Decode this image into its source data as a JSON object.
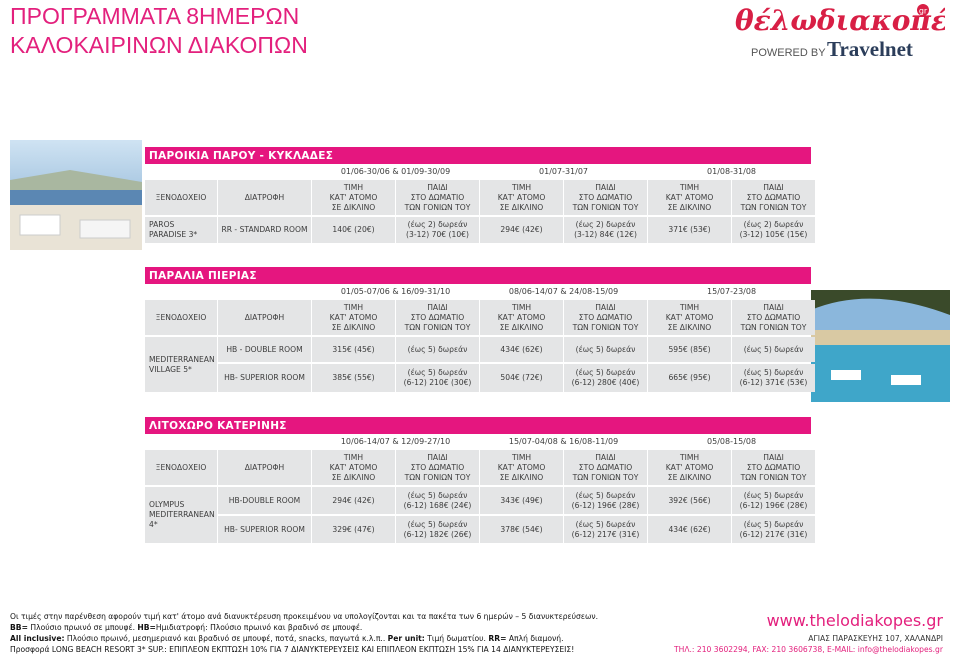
{
  "header": {
    "title": [
      "ΠΡΟΓΡΑΜΜΑΤΑ 8ΗΜΕΡΩΝ",
      "ΚΑΛΟΚΑΙΡΙΝΩΝ ΔΙΑΚΟΠΩΝ"
    ]
  },
  "logo": {
    "brand": "θέλωδιακοπές",
    "tld": "gr",
    "powered": "POWERED BY",
    "partner": "Travelnet"
  },
  "table_headers": {
    "hotel": "ΞΕΝΟΔΟΧΕΙΟ",
    "board": "ΔΙΑΤΡΟΦΗ",
    "adult": [
      "ΤΙΜΗ",
      "ΚΑΤ' ΑΤΟΜΟ",
      "ΣΕ ΔΙΚΛΙΝΟ"
    ],
    "child": [
      "ΠΑΙΔΙ",
      "ΣΤΟ ΔΩΜΑΤΙΟ",
      "ΤΩΝ ΓΟΝΙΩΝ ΤΟΥ"
    ]
  },
  "sections": [
    {
      "title": "ΠΑΡΟΙΚΙΑ ΠΑΡΟΥ - ΚΥΚΛΑΔΕΣ",
      "periods": [
        "01/06-30/06 & 01/09-30/09",
        "01/07-31/07",
        "01/08-31/08"
      ],
      "hotel": [
        "PAROS",
        "PARADISE 3*"
      ],
      "rows": [
        {
          "board": "RR - STANDARD ROOM",
          "cells": [
            [
              "140€ (20€)"
            ],
            [
              "(έως 2) δωρεάν",
              "(3-12) 70€ (10€)"
            ],
            [
              "294€ (42€)"
            ],
            [
              "(έως 2) δωρεάν",
              "(3-12) 84€ (12€)"
            ],
            [
              "371€ (53€)"
            ],
            [
              "(έως 2) δωρεάν",
              "(3-12) 105€ (15€)"
            ]
          ]
        }
      ]
    },
    {
      "title": "ΠΑΡΑΛΙΑ ΠΙΕΡΙΑΣ",
      "periods": [
        "01/05-07/06 & 16/09-31/10",
        "08/06-14/07 & 24/08-15/09",
        "15/07-23/08"
      ],
      "hotel": [
        "MEDITERRANEAN",
        "VILLAGE 5*"
      ],
      "rows": [
        {
          "board": "HB - DOUBLE ROOM",
          "cells": [
            [
              "315€ (45€)"
            ],
            [
              "(έως 5) δωρεάν"
            ],
            [
              "434€ (62€)"
            ],
            [
              "(έως 5) δωρεάν"
            ],
            [
              "595€ (85€)"
            ],
            [
              "(έως 5) δωρεάν"
            ]
          ]
        },
        {
          "board": "HB- SUPERIOR ROOM",
          "cells": [
            [
              "385€ (55€)"
            ],
            [
              "(έως 5) δωρεάν",
              "(6-12) 210€ (30€)"
            ],
            [
              "504€ (72€)"
            ],
            [
              "(έως 5) δωρεάν",
              "(6-12) 280€ (40€)"
            ],
            [
              "665€ (95€)"
            ],
            [
              "(έως 5) δωρεάν",
              "(6-12) 371€ (53€)"
            ]
          ]
        }
      ]
    },
    {
      "title": "ΛΙΤΟΧΩΡΟ ΚΑΤΕΡΙΝΗΣ",
      "periods": [
        "10/06-14/07 & 12/09-27/10",
        "15/07-04/08 & 16/08-11/09",
        "05/08-15/08"
      ],
      "hotel": [
        "OLYMPUS",
        "MEDITERRANEAN",
        "4*"
      ],
      "rows": [
        {
          "board": "HB-DOUBLE ROOM",
          "cells": [
            [
              "294€ (42€)"
            ],
            [
              "(έως 5) δωρεάν",
              "(6-12) 168€ (24€)"
            ],
            [
              "343€ (49€)"
            ],
            [
              "(έως 5) δωρεάν",
              "(6-12) 196€ (28€)"
            ],
            [
              "392€ (56€)"
            ],
            [
              "(έως 5) δωρεάν",
              "(6-12) 196€ (28€)"
            ]
          ]
        },
        {
          "board": "HB- SUPERIOR ROOM",
          "cells": [
            [
              "329€ (47€)"
            ],
            [
              "(έως 5) δωρεάν",
              "(6-12) 182€ (26€)"
            ],
            [
              "378€ (54€)"
            ],
            [
              "(έως 5) δωρεάν",
              "(6-12) 217€ (31€)"
            ],
            [
              "434€ (62€)"
            ],
            [
              "(έως 5) δωρεάν",
              "(6-12) 217€ (31€)"
            ]
          ]
        }
      ]
    }
  ],
  "notes": [
    [
      {
        "text": "Οι τιμές στην παρένθεση αφορούν τιμή κατ' άτομο ανά διανυκτέρευση προκειμένου να υπολογίζονται και τα πακέτα των 6 ημερών – 5 διανυκτερεύσεων.",
        "bold": false
      }
    ],
    [
      {
        "text": "BB=",
        "bold": true
      },
      {
        "text": " Πλούσιο πρωινό σε μπουφέ. ",
        "bold": false
      },
      {
        "text": "HB=",
        "bold": true
      },
      {
        "text": "Ημιδιατροφή: Πλούσιο πρωινό και βραδινό σε μπουφέ.",
        "bold": false
      }
    ],
    [
      {
        "text": "All inclusive:",
        "bold": true
      },
      {
        "text": " Πλούσιο πρωινό, μεσημεριανό και βραδινό σε μπουφέ, ποτά, snacks, παγωτά κ.λ.π.. ",
        "bold": false
      },
      {
        "text": "Per unit:",
        "bold": true
      },
      {
        "text": " Τιμή δωματίου. ",
        "bold": false
      },
      {
        "text": "RR=",
        "bold": true
      },
      {
        "text": " Απλή διαμονή.",
        "bold": false
      }
    ],
    [
      {
        "text": "Προσφορά LONG BEACH RESORT 3* SUP.: ΕΠΙΠΛΕΟΝ ΕΚΠΤΩΣΗ 10% ΓΙΑ 7 ΔΙΑΝΥΚΤΕΡΕΥΣΕΙΣ ΚΑΙ ΕΠΙΠΛΕΟΝ ΕΚΠΤΩΣΗ 15% ΓΙΑ 14 ΔΙΑΝΥΚΤΕΡΕΥΣΕΙΣ!",
        "bold": false
      }
    ]
  ],
  "contact": {
    "url": "www.thelodiakopes.gr",
    "address": "ΑΓΙΑΣ ΠΑΡΑΣΚΕΥΗΣ 107, ΧΑΛΑΝΔΡΙ",
    "phone": "ΤΗΛ.: 210 3602294, FAX: 210 3606738, E-MAIL: info@thelodiakopes.gr"
  }
}
